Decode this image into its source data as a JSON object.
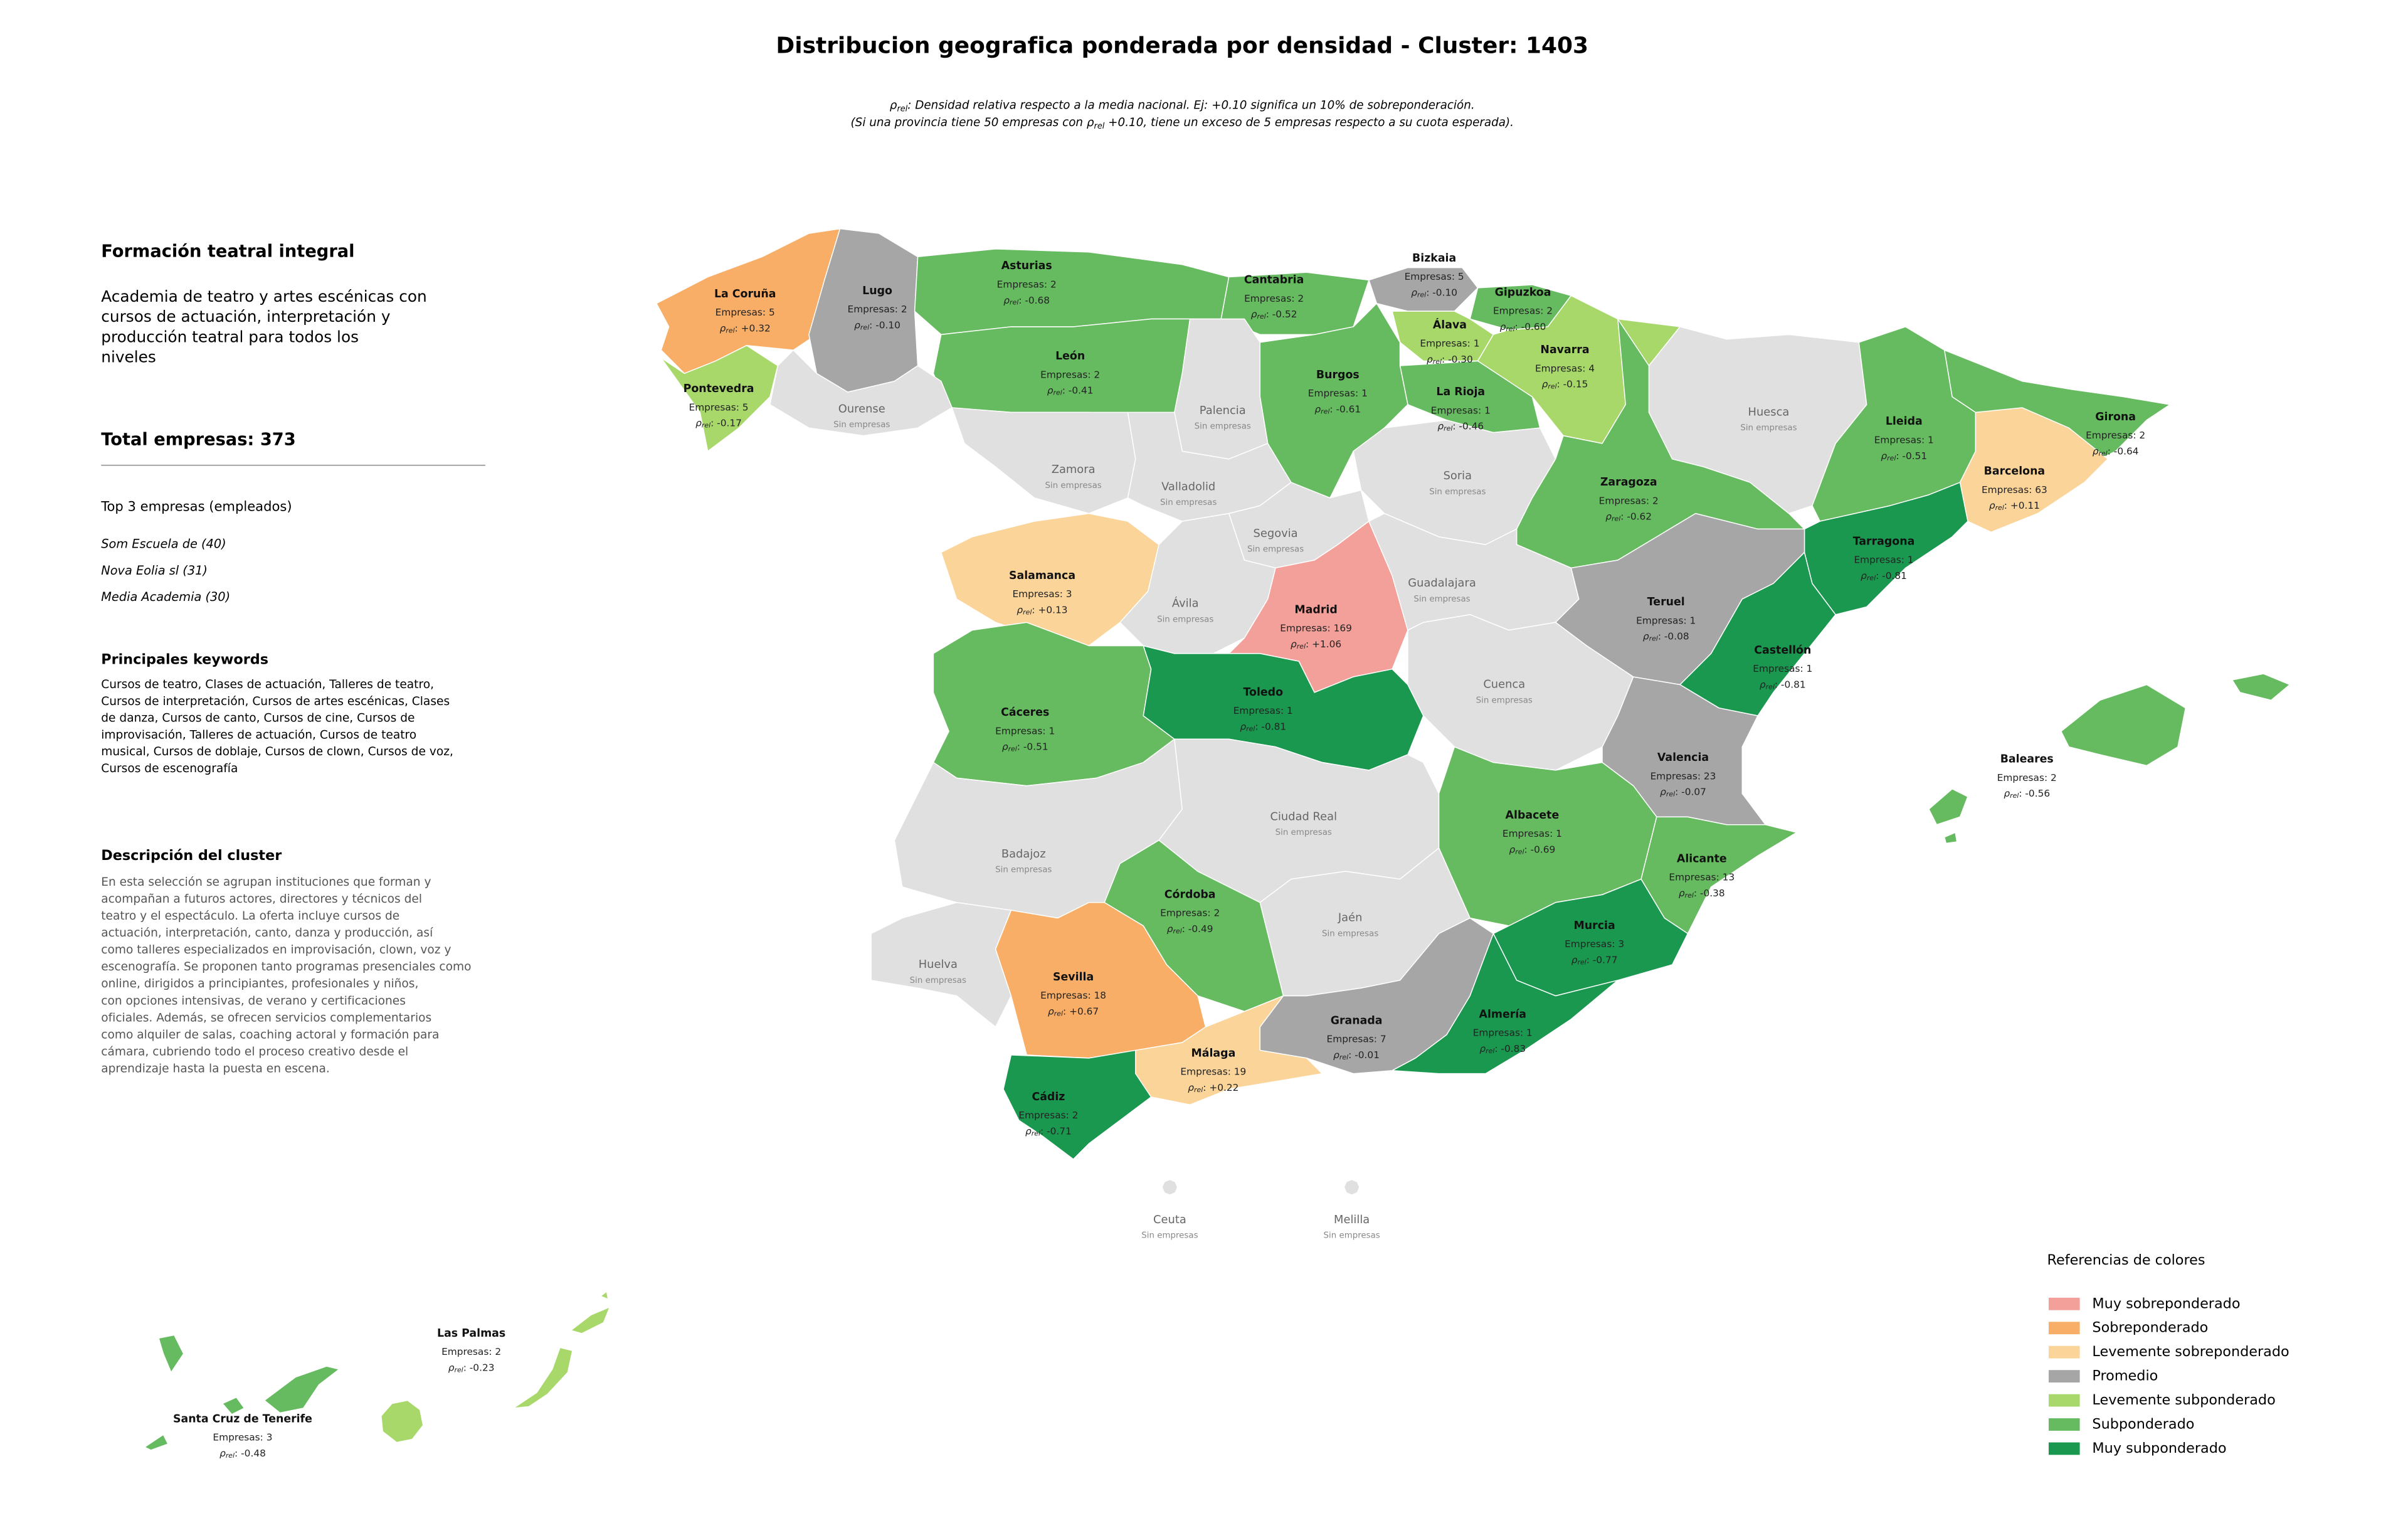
{
  "title": "Distribucion geografica ponderada por densidad - Cluster: 1403",
  "subtitle": {
    "line1": {
      "symbol": "ρ",
      "subscript": "rel",
      "text": ": Densidad relativa respecto a la media nacional. Ej: +0.10 significa un 10% de sobreponderación."
    },
    "line2": {
      "before": "(Si una provincia tiene 50 empresas con ",
      "symbol": "ρ",
      "subscript": "rel",
      "after": " +0.10, tiene un exceso de 5 empresas respecto a su cuota esperada)."
    }
  },
  "sidebar": {
    "heading": "Formación teatral integral",
    "summary": [
      "Academia de teatro y artes escénicas con",
      "cursos de actuación, interpretación y",
      "producción teatral para todos los",
      "niveles"
    ],
    "total": "Total empresas: 373",
    "top_title": "Top 3 empresas (empleados)",
    "top": [
      "Som Escuela de (40)",
      "Nova Eolia sl (31)",
      "Media Academia (30)"
    ],
    "keywords_title": "Principales keywords",
    "keywords": [
      "Cursos de teatro, Clases de actuación, Talleres de teatro,",
      "Cursos de interpretación, Cursos de artes escénicas, Clases",
      "de danza, Cursos de canto, Cursos de cine, Cursos de",
      "improvisación, Talleres de actuación, Cursos de teatro",
      "musical, Cursos de doblaje, Cursos de clown, Cursos de voz,",
      "Cursos de escenografía"
    ],
    "description_title": "Descripción del cluster",
    "description": [
      "En esta selección se agrupan instituciones que forman y",
      "acompañan a futuros actores, directores y técnicos del",
      "teatro y el espectáculo. La oferta incluye cursos de",
      "actuación, interpretación, canto, danza y producción, así",
      "como talleres especializados en improvisación, clown, voz y",
      "escenografía. Se proponen tanto programas presenciales como",
      "online, dirigidos a principiantes, profesionales y niños,",
      "con opciones intensivas, de verano y certificaciones",
      "oficiales. Además, se ofrecen servicios complementarios",
      "como alquiler de salas, coaching actoral y formación para",
      "cámara, cubriendo todo el proceso creativo desde el",
      "aprendizaje hasta la puesta en escena."
    ]
  },
  "rho_prefix": {
    "symbol": "ρ",
    "subscript": "rel",
    "separator": ": "
  },
  "no_data": {
    "label": "Sin empresas",
    "color": "#e0e0e0"
  },
  "provinces": [
    {
      "name": "La Coruña",
      "empresas": "Empresas: 5",
      "rho": "+0.32",
      "color": "#f8ae66"
    },
    {
      "name": "Lugo",
      "empresas": "Empresas: 2",
      "rho": "-0.10",
      "color": "#a6a6a6"
    },
    {
      "name": "Asturias",
      "empresas": "Empresas: 2",
      "rho": "-0.68",
      "color": "#66bb60"
    },
    {
      "name": "Cantabria",
      "empresas": "Empresas: 2",
      "rho": "-0.52",
      "color": "#66bb60"
    },
    {
      "name": "Bizkaia",
      "empresas": "Empresas: 5",
      "rho": "-0.10",
      "color": "#a6a6a6"
    },
    {
      "name": "Gipuzkoa",
      "empresas": "Empresas: 2",
      "rho": "-0.60",
      "color": "#66bb60"
    },
    {
      "name": "Álava",
      "empresas": "Empresas: 1",
      "rho": "-0.30",
      "color": "#a8d86a"
    },
    {
      "name": "Navarra",
      "empresas": "Empresas: 4",
      "rho": "-0.15",
      "color": "#a8d86a"
    },
    {
      "name": "La Rioja",
      "empresas": "Empresas: 1",
      "rho": "-0.46",
      "color": "#66bb60"
    },
    {
      "name": "Burgos",
      "empresas": "Empresas: 1",
      "rho": "-0.61",
      "color": "#66bb60"
    },
    {
      "name": "León",
      "empresas": "Empresas: 2",
      "rho": "-0.41",
      "color": "#66bb60"
    },
    {
      "name": "Pontevedra",
      "empresas": "Empresas: 5",
      "rho": "-0.17",
      "color": "#a8d86a"
    },
    {
      "name": "Ourense"
    },
    {
      "name": "Zamora"
    },
    {
      "name": "Palencia"
    },
    {
      "name": "Valladolid"
    },
    {
      "name": "Soria"
    },
    {
      "name": "Segovia"
    },
    {
      "name": "Huesca"
    },
    {
      "name": "Zaragoza",
      "empresas": "Empresas: 2",
      "rho": "-0.62",
      "color": "#66bb60"
    },
    {
      "name": "Lleida",
      "empresas": "Empresas: 1",
      "rho": "-0.51",
      "color": "#66bb60"
    },
    {
      "name": "Girona",
      "empresas": "Empresas: 2",
      "rho": "-0.64",
      "color": "#66bb60"
    },
    {
      "name": "Barcelona",
      "empresas": "Empresas: 63",
      "rho": "+0.11",
      "color": "#fbd49a"
    },
    {
      "name": "Tarragona",
      "empresas": "Empresas: 1",
      "rho": "-0.81",
      "color": "#1a9850"
    },
    {
      "name": "Salamanca",
      "empresas": "Empresas: 3",
      "rho": "+0.13",
      "color": "#fbd49a"
    },
    {
      "name": "Ávila"
    },
    {
      "name": "Madrid",
      "empresas": "Empresas: 169",
      "rho": "+1.06",
      "color": "#f4a09a"
    },
    {
      "name": "Guadalajara"
    },
    {
      "name": "Teruel",
      "empresas": "Empresas: 1",
      "rho": "-0.08",
      "color": "#a6a6a6"
    },
    {
      "name": "Castellón",
      "empresas": "Empresas: 1",
      "rho": "-0.81",
      "color": "#1a9850"
    },
    {
      "name": "Cuenca"
    },
    {
      "name": "Cáceres",
      "empresas": "Empresas: 1",
      "rho": "-0.51",
      "color": "#66bb60"
    },
    {
      "name": "Toledo",
      "empresas": "Empresas: 1",
      "rho": "-0.81",
      "color": "#1a9850"
    },
    {
      "name": "Valencia",
      "empresas": "Empresas: 23",
      "rho": "-0.07",
      "color": "#a6a6a6"
    },
    {
      "name": "Baleares",
      "empresas": "Empresas: 2",
      "rho": "-0.56",
      "color": "#66bb60"
    },
    {
      "name": "Badajoz"
    },
    {
      "name": "Ciudad Real"
    },
    {
      "name": "Albacete",
      "empresas": "Empresas: 1",
      "rho": "-0.69",
      "color": "#66bb60"
    },
    {
      "name": "Alicante",
      "empresas": "Empresas: 13",
      "rho": "-0.38",
      "color": "#66bb60"
    },
    {
      "name": "Huelva"
    },
    {
      "name": "Córdoba",
      "empresas": "Empresas: 2",
      "rho": "-0.49",
      "color": "#66bb60"
    },
    {
      "name": "Jaén"
    },
    {
      "name": "Sevilla",
      "empresas": "Empresas: 18",
      "rho": "+0.67",
      "color": "#f8ae66"
    },
    {
      "name": "Granada",
      "empresas": "Empresas: 7",
      "rho": "-0.01",
      "color": "#a6a6a6"
    },
    {
      "name": "Murcia",
      "empresas": "Empresas: 3",
      "rho": "-0.77",
      "color": "#1a9850"
    },
    {
      "name": "Almería",
      "empresas": "Empresas: 1",
      "rho": "-0.83",
      "color": "#1a9850"
    },
    {
      "name": "Málaga",
      "empresas": "Empresas: 19",
      "rho": "+0.22",
      "color": "#fbd49a"
    },
    {
      "name": "Cádiz",
      "empresas": "Empresas: 2",
      "rho": "-0.71",
      "color": "#1a9850"
    },
    {
      "name": "Ceuta"
    },
    {
      "name": "Melilla"
    },
    {
      "name": "Las Palmas",
      "empresas": "Empresas: 2",
      "rho": "-0.23",
      "color": "#a8d86a"
    },
    {
      "name": "Santa Cruz de Tenerife",
      "empresas": "Empresas: 3",
      "rho": "-0.48",
      "color": "#66bb60"
    }
  ],
  "legend": {
    "title": "Referencias de colores",
    "items": [
      {
        "label": "Muy sobreponderado",
        "color": "#f4a09a"
      },
      {
        "label": "Sobreponderado",
        "color": "#f8ae66"
      },
      {
        "label": "Levemente sobreponderado",
        "color": "#fbd49a"
      },
      {
        "label": "Promedio",
        "color": "#a6a6a6"
      },
      {
        "label": "Levemente subponderado",
        "color": "#a8d86a"
      },
      {
        "label": "Subponderado",
        "color": "#66bb60"
      },
      {
        "label": "Muy subponderado",
        "color": "#1a9850"
      }
    ]
  }
}
